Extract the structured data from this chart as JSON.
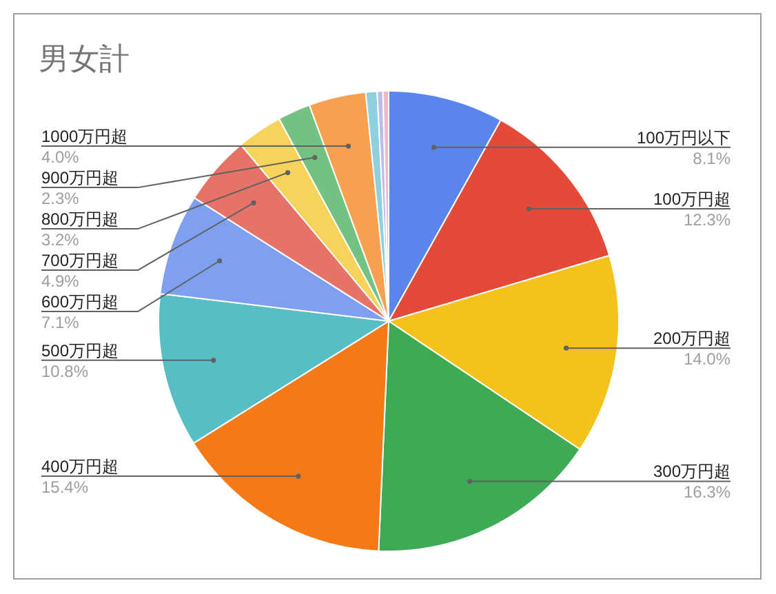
{
  "chart_data": {
    "type": "pie",
    "title": "男女計",
    "categories": [
      "100万円以下",
      "100万円超",
      "200万円超",
      "300万円超",
      "400万円超",
      "500万円超",
      "600万円超",
      "700万円超",
      "800万円超",
      "900万円超",
      "1000万円超",
      null,
      null,
      null
    ],
    "values": [
      8.1,
      12.3,
      14.0,
      16.3,
      15.4,
      10.8,
      7.1,
      4.9,
      3.2,
      2.3,
      4.0,
      0.8,
      0.4,
      0.4
    ],
    "value_labels": [
      "8.1%",
      "12.3%",
      "14.0%",
      "16.3%",
      "15.4%",
      "10.8%",
      "7.1%",
      "4.9%",
      "3.2%",
      "2.3%",
      "4.0%",
      null,
      null,
      null
    ],
    "colors": [
      "#5a86ec",
      "#e44a3a",
      "#f4c21b",
      "#3eaa56",
      "#f57a17",
      "#58bec6",
      "#7f9ff0",
      "#e57368",
      "#f6d35a",
      "#73c283",
      "#f7a04f",
      "#8ecfe0",
      "#bcbce6",
      "#f0b8c8"
    ]
  }
}
